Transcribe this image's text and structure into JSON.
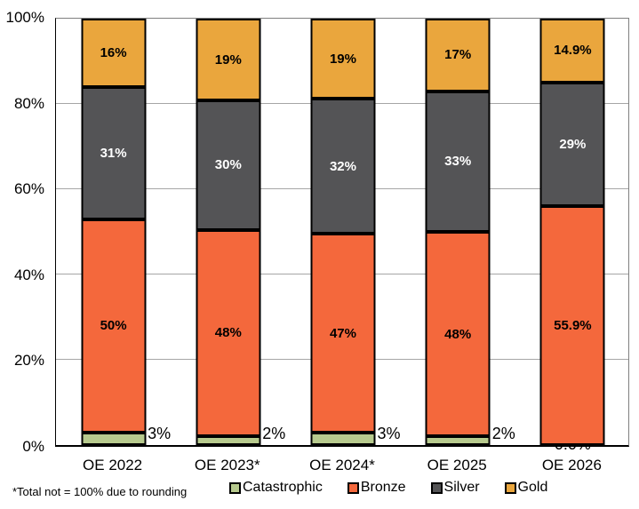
{
  "chart_data": {
    "type": "bar",
    "stacked": true,
    "percent_stacked": true,
    "title": "",
    "categories": [
      "OE 2022",
      "OE 2023*",
      "OE 2024*",
      "OE 2025",
      "OE 2026"
    ],
    "series": [
      {
        "name": "Catastrophic",
        "color": "#b7ca8e",
        "label_color": "#000000",
        "values": [
          3,
          2,
          3,
          2,
          0
        ],
        "labels": [
          "3%",
          "2%",
          "3%",
          "2%",
          "0.0%"
        ],
        "label_placement": "outside-right-bottom"
      },
      {
        "name": "Bronze",
        "color": "#f4683c",
        "label_color": "#000000",
        "values": [
          50,
          48,
          47,
          48,
          55.9
        ],
        "labels": [
          "50%",
          "48%",
          "47%",
          "48%",
          "55.9%"
        ],
        "label_placement": "inside-center"
      },
      {
        "name": "Silver",
        "color": "#545456",
        "label_color": "#ffffff",
        "values": [
          31,
          30,
          32,
          33,
          29
        ],
        "labels": [
          "31%",
          "30%",
          "32%",
          "33%",
          "29%"
        ],
        "label_placement": "inside-center"
      },
      {
        "name": "Gold",
        "color": "#eaa63d",
        "label_color": "#000000",
        "values": [
          16,
          19,
          19,
          17,
          14.9
        ],
        "labels": [
          "16%",
          "19%",
          "19%",
          "17%",
          "14.9%"
        ],
        "label_placement": "inside-center"
      }
    ],
    "y_axis": {
      "min": 0,
      "max": 100,
      "tick_step": 20,
      "tick_labels": [
        "0%",
        "20%",
        "40%",
        "60%",
        "80%",
        "100%"
      ]
    },
    "grid": true,
    "legend_position": "bottom",
    "legend": [
      "Catastrophic",
      "Bronze",
      "Silver",
      "Gold"
    ],
    "footnote": "*Total not = 100% due to rounding",
    "bar_border_color": "#000000",
    "gridline_color": "#a6a6a6"
  }
}
